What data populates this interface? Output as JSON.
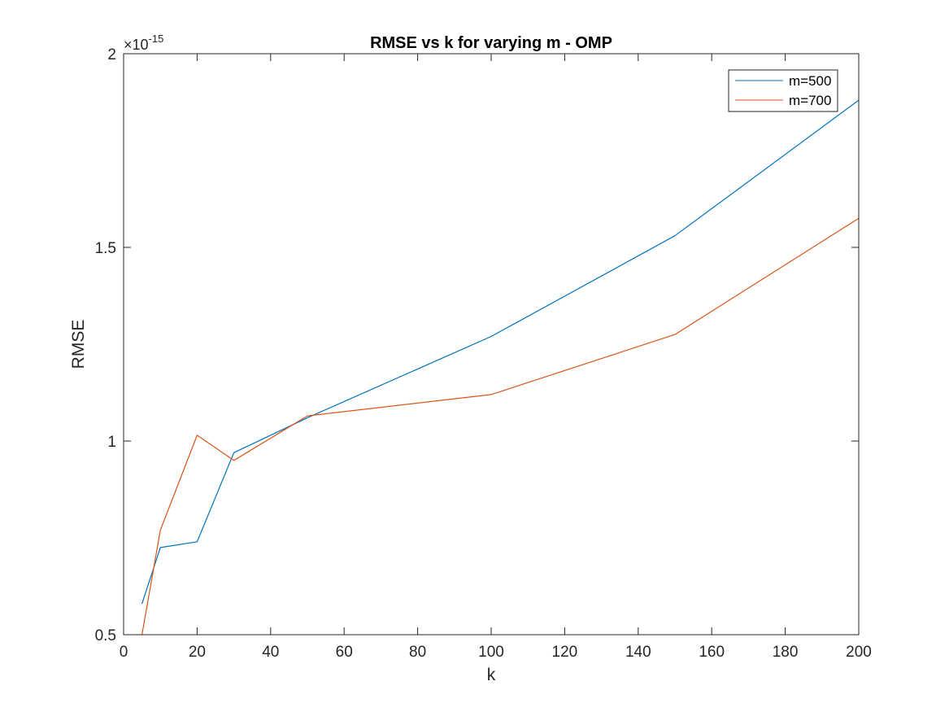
{
  "chart_data": {
    "type": "line",
    "title": "RMSE vs k for varying m - OMP",
    "xlabel": "k",
    "ylabel": "RMSE",
    "xlim": [
      0,
      200
    ],
    "ylim": [
      0.5,
      2
    ],
    "y_exponent_base": "×10",
    "y_exponent_power": "-15",
    "xticks": [
      "0",
      "20",
      "40",
      "60",
      "80",
      "100",
      "120",
      "140",
      "160",
      "180",
      "200"
    ],
    "yticks": [
      "0.5",
      "1",
      "1.5",
      "2"
    ],
    "grid": false,
    "legend_position": "top-right",
    "series": [
      {
        "name": "m=500",
        "color": "#0072BD",
        "x": [
          5,
          10,
          20,
          30,
          50,
          100,
          150,
          200
        ],
        "y": [
          0.58,
          0.725,
          0.74,
          0.97,
          1.06,
          1.27,
          1.53,
          1.88
        ]
      },
      {
        "name": "m=700",
        "color": "#D95319",
        "x": [
          5,
          10,
          20,
          30,
          50,
          100,
          150,
          200
        ],
        "y": [
          0.5,
          0.77,
          1.015,
          0.95,
          1.065,
          1.12,
          1.275,
          1.575
        ]
      }
    ]
  }
}
